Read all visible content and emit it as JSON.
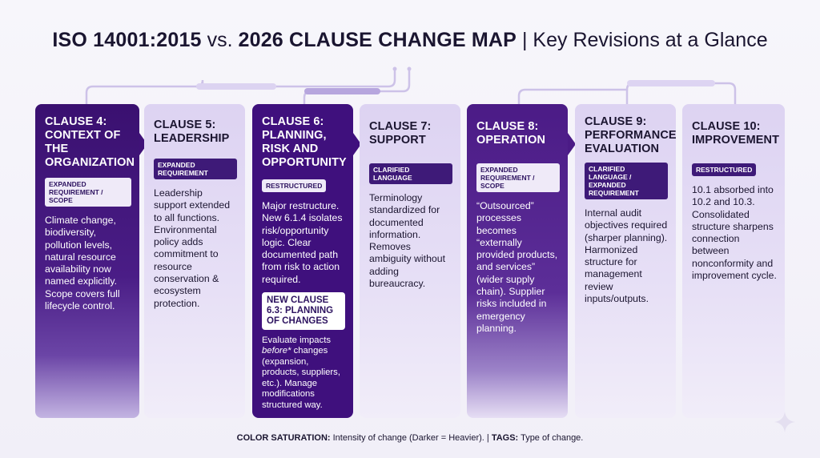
{
  "title": {
    "part1": "ISO 14001:2015",
    "part2": " vs. ",
    "part3": "2026 CLAUSE CHANGE MAP",
    "part4": " | Key Revisions at a Glance"
  },
  "colors": {
    "dark_purple": "#3f107d",
    "light_purple": "#e3dbf4",
    "connector": "#c9bde6"
  },
  "clauses": [
    {
      "heading": "CLAUSE 4: CONTEXT OF THE ORGANIZATION",
      "tag": "EXPANDED REQUIREMENT / SCOPE",
      "body": "Climate change, biodiversity, pollution levels, natural resource availability now named explicitly. Scope covers full lifecycle control."
    },
    {
      "heading": "CLAUSE 5: LEADERSHIP",
      "tag": "EXPANDED REQUIREMENT",
      "body": "Leadership support extended to all functions. Environmental policy adds commitment to resource conservation & ecosystem protection."
    },
    {
      "heading": "CLAUSE 6: PLANNING, RISK AND OPPORTUNITY",
      "tag": "RESTRUCTURED",
      "body": "Major restructure. New 6.1.4 isolates risk/opportunity logic. Clear documented path from risk to action required.",
      "sub_heading": "NEW CLAUSE 6.3: PLANNING OF CHANGES",
      "sub_body_pre": "Evaluate impacts ",
      "sub_body_em": "before*",
      "sub_body_post": " changes (expansion, products, suppliers, etc.). Manage modifications structured way."
    },
    {
      "heading": "CLAUSE 7: SUPPORT",
      "tag": "CLARIFIED LANGUAGE",
      "body": "Terminology standardized for documented information. Removes ambiguity without adding bureaucracy."
    },
    {
      "heading": "CLAUSE 8: OPERATION",
      "tag": "EXPANDED REQUIREMENT / SCOPE",
      "body": "“Outsourced” processes becomes “externally provided products, and services” (wider supply chain). Supplier risks included in emergency planning."
    },
    {
      "heading": "CLAUSE 9: PERFORMANCE EVALUATION",
      "tag": "CLARIFIED LANGUAGE / EXPANDED REQUIREMENT",
      "body": "Internal audit objectives required (sharper planning). Harmonized structure for management review inputs/outputs."
    },
    {
      "heading": "CLAUSE 10: IMPROVEMENT",
      "tag": "RESTRUCTURED",
      "body": "10.1 absorbed into 10.2 and 10.3. Consolidated structure sharpens connection between nonconformity and improvement cycle."
    }
  ],
  "footer": {
    "label1": "COLOR SATURATION:",
    "text1": " Intensity of change (Darker = Heavier). | ",
    "label2": "TAGS:",
    "text2": " Type of change."
  }
}
